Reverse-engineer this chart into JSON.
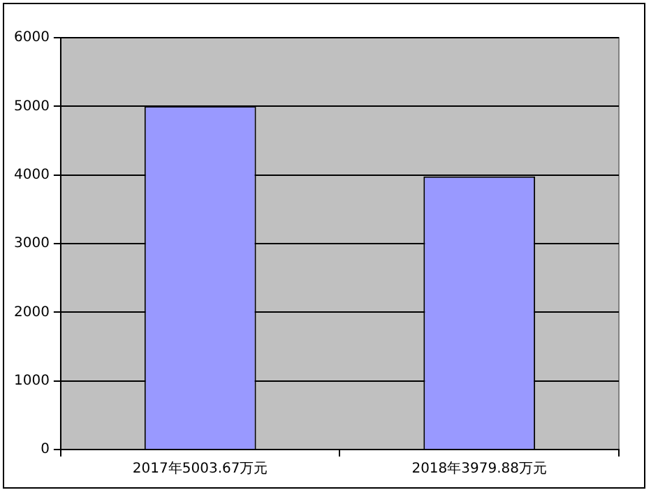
{
  "chart_data": {
    "type": "bar",
    "categories": [
      "2017年5003.67万元",
      "2018年3979.88万元"
    ],
    "values": [
      5003.67,
      3979.88
    ],
    "color": "#9999ff",
    "ylim": [
      0,
      6000
    ],
    "yticks": [
      0,
      1000,
      2000,
      3000,
      4000,
      5000,
      6000
    ],
    "grid": "y",
    "legend": false
  }
}
